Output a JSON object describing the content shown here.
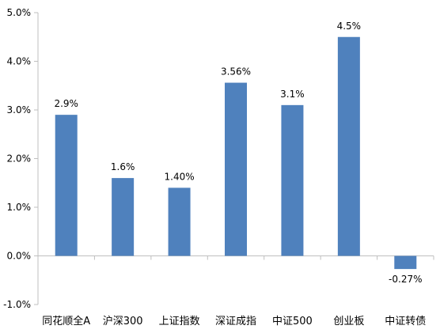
{
  "chart_data": {
    "type": "bar",
    "categories": [
      "同花顺全A",
      "沪深300",
      "上证指数",
      "深证成指",
      "中证500",
      "创业板",
      "中证转债"
    ],
    "values": [
      2.9,
      1.6,
      1.4,
      3.56,
      3.1,
      4.5,
      -0.27
    ],
    "data_labels": [
      "2.9%",
      "1.6%",
      "1.40%",
      "3.56%",
      "3.1%",
      "4.5%",
      "-0.27%"
    ],
    "y_ticks": [
      "-1.0%",
      "0.0%",
      "1.0%",
      "2.0%",
      "3.0%",
      "4.0%",
      "5.0%"
    ],
    "ylim": [
      -1.0,
      5.0
    ],
    "title": "",
    "xlabel": "",
    "ylabel": "",
    "grid": false,
    "bar_color": "#4f81bd",
    "axis_color": "#bfbfbf"
  }
}
